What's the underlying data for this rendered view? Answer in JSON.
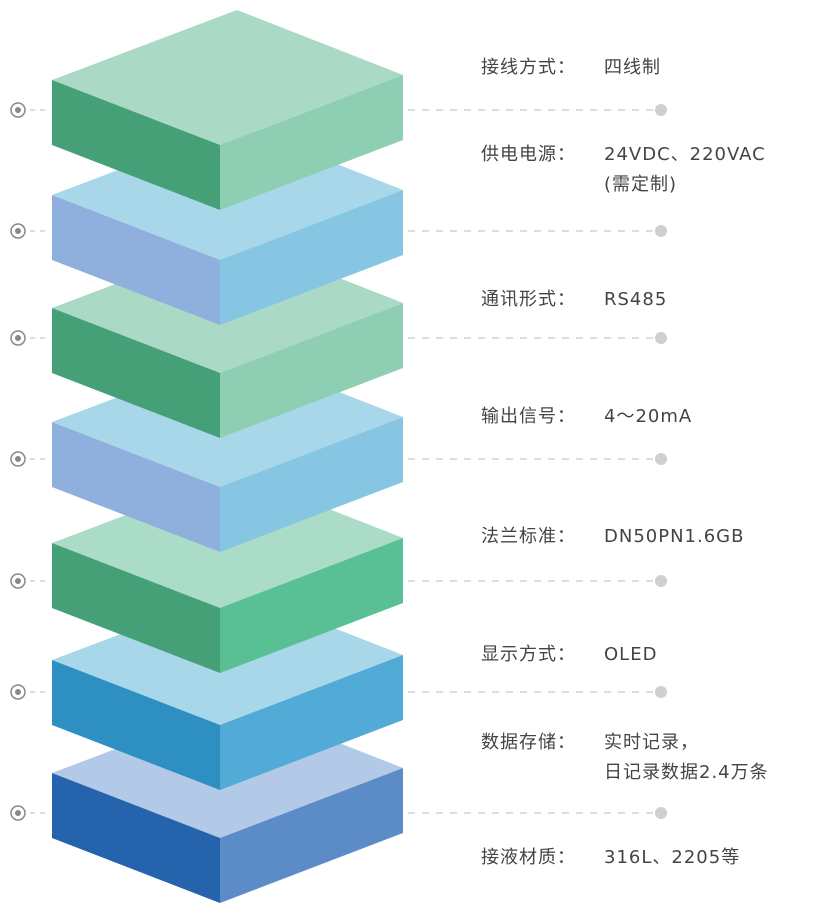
{
  "specs": [
    {
      "label": "接线方式：",
      "value": [
        "四线制"
      ]
    },
    {
      "label": "供电电源：",
      "value": [
        "24VDC、220VAC",
        "(需定制)"
      ]
    },
    {
      "label": "通讯形式：",
      "value": [
        "RS485"
      ]
    },
    {
      "label": "输出信号：",
      "value": [
        "4～20mA"
      ]
    },
    {
      "label": "法兰标准：",
      "value": [
        "DN50PN1.6GB"
      ]
    },
    {
      "label": "显示方式：",
      "value": [
        "OLED"
      ]
    },
    {
      "label": "数据存储：",
      "value": [
        "实时记录，",
        "日记录数据2.4万条"
      ]
    },
    {
      "label": "接液材质：",
      "value": [
        "316L、2205等"
      ]
    }
  ]
}
